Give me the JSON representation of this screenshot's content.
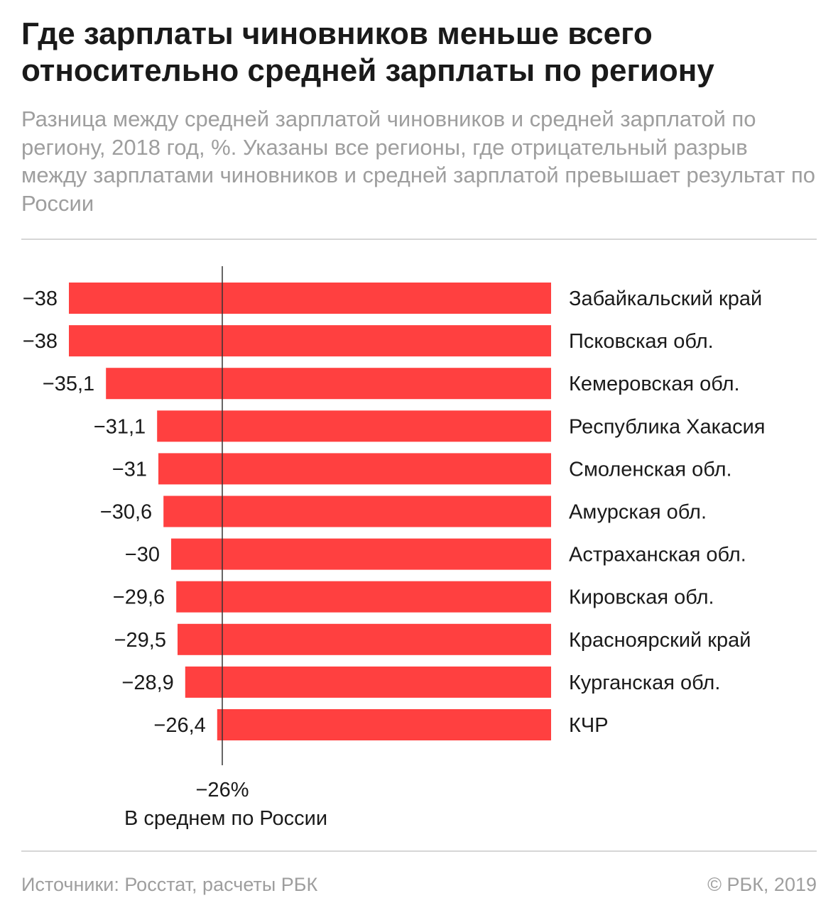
{
  "header": {
    "title": "Где зарплаты чиновников меньше всего относительно средней зарплаты по региону",
    "subtitle": "Разница между средней зарплатой чиновников и средней зарплатой по региону, 2018 год, %. Указаны все регионы, где отрицательный разрыв между зарплатами чиновников и средней зарплатой превышает результат по России"
  },
  "chart_data": {
    "type": "bar",
    "orientation": "horizontal",
    "categories": [
      "Забайкальский край",
      "Псковская обл.",
      "Кемеровская обл.",
      "Республика Хакасия",
      "Смоленская обл.",
      "Амурская обл.",
      "Астраханская обл.",
      "Кировская обл.",
      "Красноярский край",
      "Курганская обл.",
      "КЧР"
    ],
    "values": [
      -38,
      -38,
      -35.1,
      -31.1,
      -31,
      -30.6,
      -30,
      -29.6,
      -29.5,
      -28.9,
      -26.4
    ],
    "value_labels": [
      "−38",
      "−38",
      "−35,1",
      "−31,1",
      "−31",
      "−30,6",
      "−30",
      "−29,6",
      "−29,5",
      "−28,9",
      "−26,4"
    ],
    "reference_line": {
      "value": -26,
      "value_label": "−26%",
      "label": "В среднем по России"
    },
    "xlim": [
      -38,
      -26
    ],
    "bar_color": "#ff4040",
    "title": "Где зарплаты чиновников меньше всего относительно средней зарплаты по региону"
  },
  "footer": {
    "source": "Источники: Росстат, расчеты РБК",
    "copyright": "© РБК, 2019"
  }
}
